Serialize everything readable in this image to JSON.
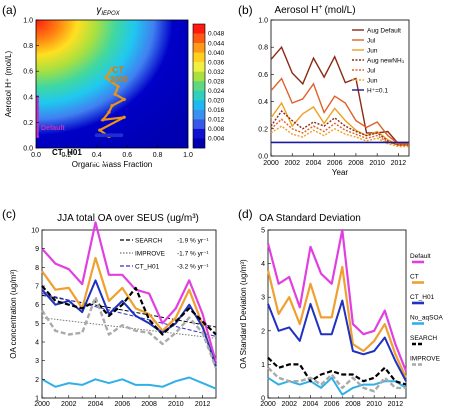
{
  "chart_data": [
    {
      "type": "heatmap",
      "panel": "(a)",
      "title": "γIEPOX",
      "title_symbol": "γ",
      "title_subscript": "IEPOX",
      "xlabel": "Organic Mass Fraction",
      "ylabel": "Aerosol H⁺ (mol/L)",
      "xlim": [
        0.0,
        1.0
      ],
      "ylim": [
        0.0,
        1.0
      ],
      "xticks": [
        "0.0",
        "0.2",
        "0.4",
        "0.6",
        "0.8",
        "1.0"
      ],
      "yticks": [
        "0.0",
        "0.2",
        "0.4",
        "0.6",
        "0.8",
        "1.0"
      ],
      "colorbar_ticks": [
        "0.048",
        "0.044",
        "0.040",
        "0.036",
        "0.032",
        "0.028",
        "0.024",
        "0.020",
        "0.016",
        "0.012",
        "0.008",
        "0.004"
      ],
      "annotations": [
        {
          "text": "CT",
          "color": "#d07a10"
        },
        {
          "text": "2000",
          "color": "#d07a10"
        },
        {
          "text": "Default",
          "color": "#c030c0"
        },
        {
          "text": "CT_H01",
          "color": "#000000"
        },
        {
          "text": "2013",
          "color": "#ffffff"
        }
      ],
      "ct_path": {
        "x": [
          0.5,
          0.46,
          0.54,
          0.52,
          0.58,
          0.5,
          0.48,
          0.44,
          0.58,
          0.42,
          0.48
        ],
        "y": [
          0.62,
          0.55,
          0.48,
          0.42,
          0.38,
          0.33,
          0.28,
          0.22,
          0.24,
          0.14,
          0.09
        ]
      },
      "default_path": {
        "x": [
          0.0,
          0.0,
          0.0,
          0.0,
          0.0,
          0.0,
          0.0,
          0.0,
          0.0,
          0.0,
          0.0
        ],
        "y": [
          0.4,
          0.36,
          0.32,
          0.3,
          0.27,
          0.25,
          0.22,
          0.2,
          0.18,
          0.14,
          0.09
        ]
      },
      "ct_h01_path": {
        "x": [
          0.4,
          0.42,
          0.44,
          0.46,
          0.48,
          0.5,
          0.52,
          0.54,
          0.56
        ],
        "y": [
          0.1,
          0.1,
          0.1,
          0.1,
          0.1,
          0.1,
          0.1,
          0.1,
          0.1
        ]
      }
    },
    {
      "type": "line",
      "panel": "(b)",
      "title": "Aerosol H⁺ (mol/L)",
      "title_plain": "Aerosol H",
      "title_super": "+",
      "title_units": "(mol/L)",
      "xlabel": "Year",
      "ylabel": "",
      "xlim": [
        2000,
        2013
      ],
      "ylim": [
        0.0,
        1.0
      ],
      "xticks": [
        "2000",
        "2002",
        "2004",
        "2006",
        "2008",
        "2010",
        "2012"
      ],
      "yticks": [
        "0.0",
        "0.2",
        "0.4",
        "0.6",
        "0.8",
        "1.0"
      ],
      "legend_position": "top-right",
      "x": [
        2000,
        2001,
        2002,
        2003,
        2004,
        2005,
        2006,
        2007,
        2008,
        2009,
        2010,
        2011,
        2012,
        2013
      ],
      "series": [
        {
          "name": "Aug Default",
          "color": "#8a2a14",
          "dash": "",
          "values": [
            0.71,
            0.8,
            0.61,
            0.53,
            0.72,
            0.58,
            0.73,
            0.54,
            0.57,
            0.17,
            0.17,
            0.18,
            0.09,
            0.09
          ]
        },
        {
          "name": "Jul",
          "color": "#e0602a",
          "dash": "",
          "values": [
            0.48,
            0.57,
            0.39,
            0.42,
            0.53,
            0.32,
            0.44,
            0.39,
            0.26,
            0.21,
            0.25,
            0.15,
            0.09,
            0.09
          ]
        },
        {
          "name": "Jun",
          "color": "#f0a020",
          "dash": "",
          "values": [
            0.28,
            0.39,
            0.22,
            0.31,
            0.36,
            0.24,
            0.35,
            0.26,
            0.19,
            0.15,
            0.18,
            0.12,
            0.08,
            0.08
          ]
        },
        {
          "name": "Aug newNH₃",
          "color": "#8a2a14",
          "dash": "2,1.5",
          "values": [
            0.22,
            0.33,
            0.26,
            0.2,
            0.25,
            0.22,
            0.28,
            0.22,
            0.18,
            0.15,
            0.17,
            0.11,
            0.08,
            0.08
          ]
        },
        {
          "name": "Jul",
          "color": "#e0602a",
          "dash": "2,1.5",
          "values": [
            0.2,
            0.27,
            0.2,
            0.17,
            0.22,
            0.18,
            0.24,
            0.19,
            0.16,
            0.13,
            0.15,
            0.1,
            0.08,
            0.08
          ]
        },
        {
          "name": "Jun",
          "color": "#f0a020",
          "dash": "2,1.5",
          "values": [
            0.17,
            0.22,
            0.16,
            0.14,
            0.19,
            0.15,
            0.2,
            0.16,
            0.14,
            0.11,
            0.13,
            0.09,
            0.07,
            0.07
          ]
        },
        {
          "name": "H⁺=0.1",
          "color": "#1a1a9a",
          "dash": "",
          "values": [
            0.1,
            0.1,
            0.1,
            0.1,
            0.1,
            0.1,
            0.1,
            0.1,
            0.1,
            0.1,
            0.1,
            0.1,
            0.1,
            0.1
          ]
        }
      ]
    },
    {
      "type": "line",
      "panel": "(c)",
      "title": "JJA total OA over SEUS (ug/m³)",
      "xlabel": "",
      "ylabel": "OA concentration (ug/m³)",
      "xlim": [
        2000,
        2013
      ],
      "ylim": [
        1,
        10
      ],
      "xticks": [
        "2000",
        "2002",
        "2004",
        "2006",
        "2008",
        "2010",
        "2012"
      ],
      "yticks": [
        "1",
        "2",
        "3",
        "4",
        "5",
        "6",
        "7",
        "8",
        "9",
        "10"
      ],
      "legend_position": "top-right",
      "legend": [
        {
          "name": "SEARCH",
          "trend": "-1.9 % yr⁻¹",
          "color": "#000000",
          "dash": "4,2"
        },
        {
          "name": "IMPROVE",
          "trend": "-1.7 % yr⁻¹",
          "color": "#777777",
          "dash": "1.5,1.5"
        },
        {
          "name": "CT_H01",
          "trend": "-3.2 % yr⁻¹",
          "color": "#3030d0",
          "dash": "4,2"
        }
      ],
      "x": [
        2000,
        2001,
        2002,
        2003,
        2004,
        2005,
        2006,
        2007,
        2008,
        2009,
        2010,
        2011,
        2012,
        2013
      ],
      "series": [
        {
          "name": "Default",
          "color": "#e040e0",
          "width": 2.2,
          "dash": "",
          "values": [
            9.0,
            8.2,
            7.9,
            7.1,
            10.4,
            7.6,
            7.6,
            6.8,
            6.6,
            5.0,
            5.8,
            7.3,
            5.5,
            2.9
          ]
        },
        {
          "name": "CT",
          "color": "#f0a030",
          "width": 2.2,
          "dash": "",
          "values": [
            7.8,
            6.8,
            6.9,
            5.8,
            8.5,
            6.2,
            6.9,
            5.8,
            5.5,
            4.6,
            5.3,
            6.8,
            4.9,
            2.6
          ]
        },
        {
          "name": "CT_H01",
          "color": "#2030c0",
          "width": 2.0,
          "dash": "",
          "values": [
            6.8,
            6.0,
            6.2,
            5.6,
            7.3,
            5.5,
            6.2,
            5.4,
            5.0,
            4.5,
            5.0,
            6.0,
            4.8,
            2.7
          ]
        },
        {
          "name": "No_aqSOA",
          "color": "#30b0e8",
          "width": 2.0,
          "dash": "",
          "values": [
            2.0,
            1.6,
            1.8,
            1.7,
            2.0,
            1.8,
            2.0,
            1.7,
            1.7,
            1.6,
            1.9,
            2.1,
            1.8,
            1.5
          ]
        },
        {
          "name": "SEARCH",
          "color": "#000000",
          "width": 2.2,
          "dash": "5,2.5",
          "values": [
            7.0,
            6.2,
            6.0,
            5.8,
            6.2,
            5.4,
            6.0,
            6.9,
            5.2,
            4.4,
            5.1,
            5.8,
            5.1,
            4.4
          ]
        },
        {
          "name": "IMPROVE",
          "color": "#aaaaaa",
          "width": 2.4,
          "dash": "5,2.5",
          "values": [
            5.7,
            4.6,
            4.4,
            4.5,
            6.4,
            4.4,
            4.9,
            4.6,
            4.5,
            3.9,
            4.5,
            5.3,
            4.5,
            2.6
          ]
        }
      ],
      "trend_lines": [
        {
          "name": "SEARCH",
          "color": "#000000",
          "dash": "4,2",
          "values": [
            6.5,
            4.8
          ]
        },
        {
          "name": "IMPROVE",
          "color": "#777777",
          "dash": "1.5,1.5",
          "values": [
            5.3,
            4.2
          ]
        },
        {
          "name": "CT_H01",
          "color": "#3030d0",
          "dash": "4,2",
          "values": [
            6.6,
            4.3
          ]
        }
      ]
    },
    {
      "type": "line",
      "panel": "(d)",
      "title": "OA Standard Deviation",
      "xlabel": "",
      "ylabel": "OA Standard Deviation (ug/m³)",
      "xlim": [
        2000,
        2013
      ],
      "ylim": [
        0.0,
        5.0
      ],
      "xticks": [
        "2000",
        "2002",
        "2004",
        "2006",
        "2008",
        "2010",
        "2012"
      ],
      "yticks": [
        "0",
        "1",
        "2",
        "3",
        "4",
        "5"
      ],
      "legend_position": "right",
      "x": [
        2000,
        2001,
        2002,
        2003,
        2004,
        2005,
        2006,
        2007,
        2008,
        2009,
        2010,
        2011,
        2012,
        2013
      ],
      "series": [
        {
          "name": "Default",
          "color": "#e040e0",
          "width": 2.2,
          "dash": "",
          "values": [
            4.6,
            3.4,
            3.6,
            2.7,
            4.5,
            3.7,
            3.4,
            5.0,
            2.2,
            1.9,
            2.0,
            2.6,
            1.6,
            0.8
          ]
        },
        {
          "name": "CT",
          "color": "#f0a030",
          "width": 2.2,
          "dash": "",
          "values": [
            3.8,
            2.5,
            3.0,
            2.2,
            3.4,
            2.4,
            2.4,
            3.9,
            1.6,
            1.4,
            1.7,
            2.2,
            1.3,
            0.6
          ]
        },
        {
          "name": "CT_H01",
          "color": "#2030c0",
          "width": 2.0,
          "dash": "",
          "values": [
            2.8,
            2.0,
            2.1,
            1.7,
            2.8,
            1.9,
            1.9,
            2.9,
            1.4,
            1.3,
            1.4,
            1.8,
            1.1,
            0.5
          ]
        },
        {
          "name": "No_aqSOA",
          "color": "#30b0e8",
          "width": 2.0,
          "dash": "",
          "values": [
            0.6,
            0.4,
            0.5,
            0.4,
            0.5,
            0.3,
            0.6,
            0.1,
            0.3,
            0.4,
            0.4,
            0.5,
            0.5,
            0.3
          ]
        },
        {
          "name": "SEARCH",
          "color": "#000000",
          "width": 2.2,
          "dash": "5,2.5",
          "values": [
            1.2,
            0.9,
            1.0,
            1.0,
            0.5,
            0.7,
            0.8,
            0.7,
            0.7,
            0.5,
            0.6,
            0.9,
            0.5,
            0.4
          ]
        },
        {
          "name": "IMPROVE",
          "color": "#aaaaaa",
          "width": 2.4,
          "dash": "5,2.5",
          "values": [
            0.9,
            0.6,
            0.5,
            0.5,
            0.6,
            0.4,
            0.7,
            0.3,
            0.6,
            0.3,
            0.2,
            0.6,
            0.3,
            0.3
          ]
        }
      ]
    }
  ]
}
